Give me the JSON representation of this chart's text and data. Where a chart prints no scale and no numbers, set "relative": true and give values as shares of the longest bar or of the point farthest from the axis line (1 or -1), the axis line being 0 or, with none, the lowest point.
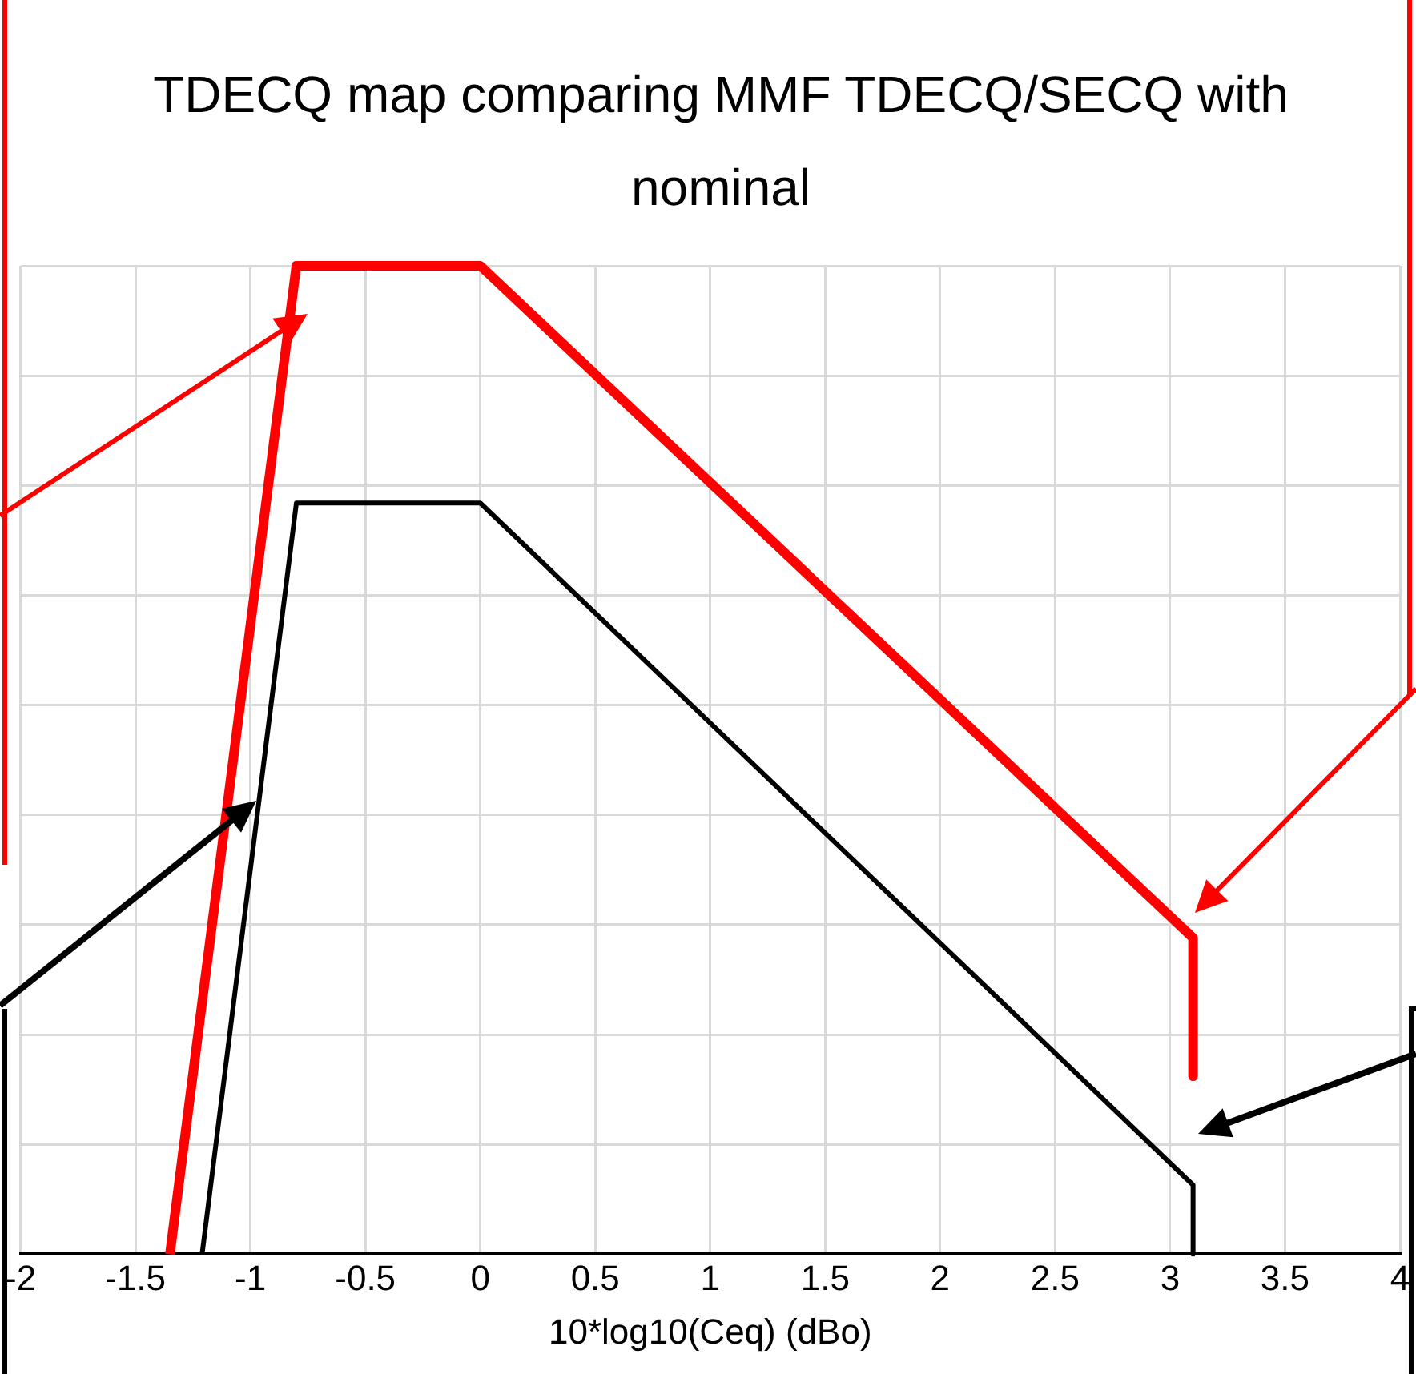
{
  "chart_data": {
    "type": "line",
    "title": "TDECQ map comparing MMF TDECQ/SECQ with nominal",
    "xlabel": "10*log10(Ceq) (dBo)",
    "xlim": [
      -2,
      4
    ],
    "xticks": [
      -2,
      -1.5,
      -1,
      -0.5,
      0,
      0.5,
      1,
      1.5,
      2,
      2.5,
      3,
      3.5,
      4
    ],
    "relative": true,
    "grid": true,
    "legend": false,
    "marker": "none",
    "series": [
      {
        "color": "#ff0000",
        "x": [
          -1.35,
          -0.8,
          0,
          3.1,
          3.1
        ],
        "values": [
          0,
          1,
          1,
          0.32,
          0.18
        ]
      },
      {
        "color": "#000000",
        "x": [
          -1.21,
          -0.8,
          0,
          3.1,
          3.1
        ],
        "values": [
          0,
          0.76,
          0.76,
          0.07,
          0
        ]
      }
    ]
  }
}
